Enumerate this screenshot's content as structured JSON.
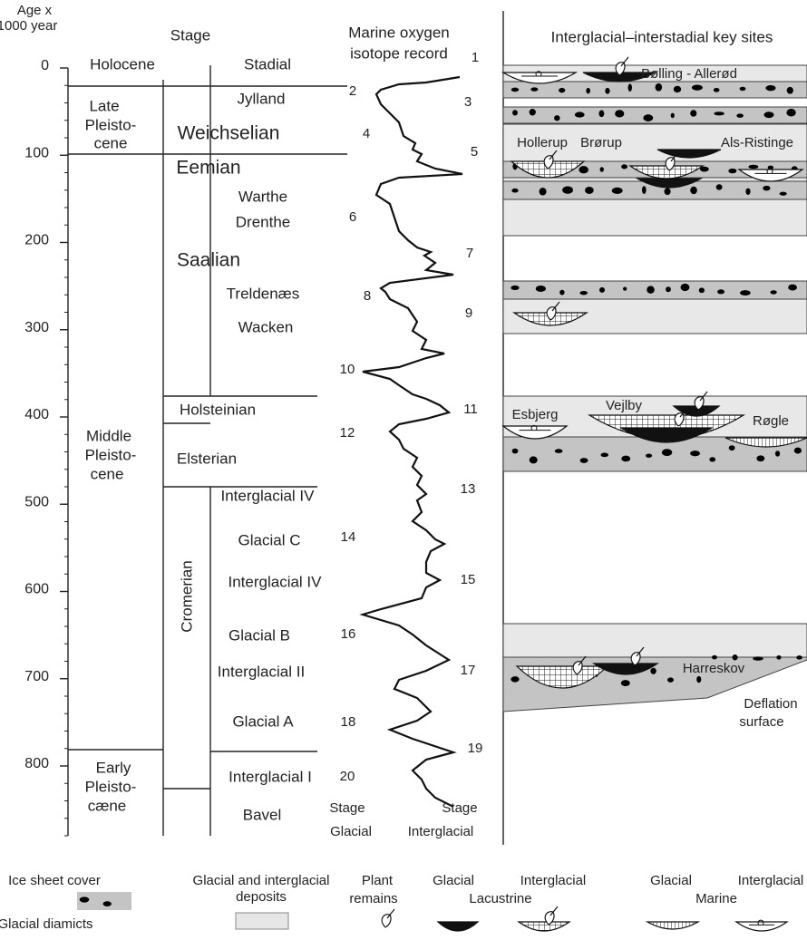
{
  "axis": {
    "label_lines": [
      "Age x",
      "1000 year"
    ],
    "ticks": [
      0,
      100,
      200,
      300,
      400,
      500,
      600,
      700,
      800
    ],
    "lim": [
      0,
      880
    ]
  },
  "headers": {
    "stage": "Stage",
    "isotope": [
      "Marine oxygen",
      "isotope record"
    ],
    "sites": "Interglacial–interstadial key sites"
  },
  "series_labels": [
    [
      "Holocene"
    ],
    [
      "Late",
      "Pleisto-",
      "cene"
    ],
    [
      "Middle",
      "Pleisto-",
      "cene"
    ],
    [
      "Early",
      "Pleisto-",
      "cæne"
    ]
  ],
  "stages": [
    "Weichselian",
    "Eemian",
    "Saalian",
    "Holsteinian",
    "Elsterian",
    "Cromerian"
  ],
  "substages": [
    "Stadial",
    "Jylland",
    "Warthe",
    "Drenthe",
    "Treldenæs",
    "Wacken",
    "Interglacial IV",
    "Glacial C",
    "Interglacial IV",
    "Glacial B",
    "Interglacial II",
    "Glacial A",
    "Interglacial I",
    "Bavel"
  ],
  "isotope_stages": [
    1,
    2,
    3,
    4,
    5,
    6,
    7,
    8,
    9,
    10,
    11,
    12,
    13,
    14,
    15,
    16,
    17,
    18,
    19,
    20
  ],
  "curve_footer": [
    "Stage",
    "Glacial",
    "Stage",
    "Interglacial"
  ],
  "sites": [
    "Bølling - Allerød",
    "Hollerup",
    "Brørup",
    "Als-Ristinge",
    "Esbjerg",
    "Vejlby",
    "Røgle",
    "Harreskov",
    "Deflation",
    "surface"
  ],
  "legend": {
    "ice_sheet": "Ice sheet cover",
    "diamicts": "Glacial diamicts",
    "deposits": [
      "Glacial and interglacial",
      "deposits"
    ],
    "plant": [
      "Plant",
      "remains"
    ],
    "lacustrine": {
      "glacial": "Glacial",
      "interglacial": "Interglacial",
      "label": "Lacustrine"
    },
    "marine": {
      "glacial": "Glacial",
      "interglacial": "Interglacial",
      "label": "Marine"
    }
  }
}
